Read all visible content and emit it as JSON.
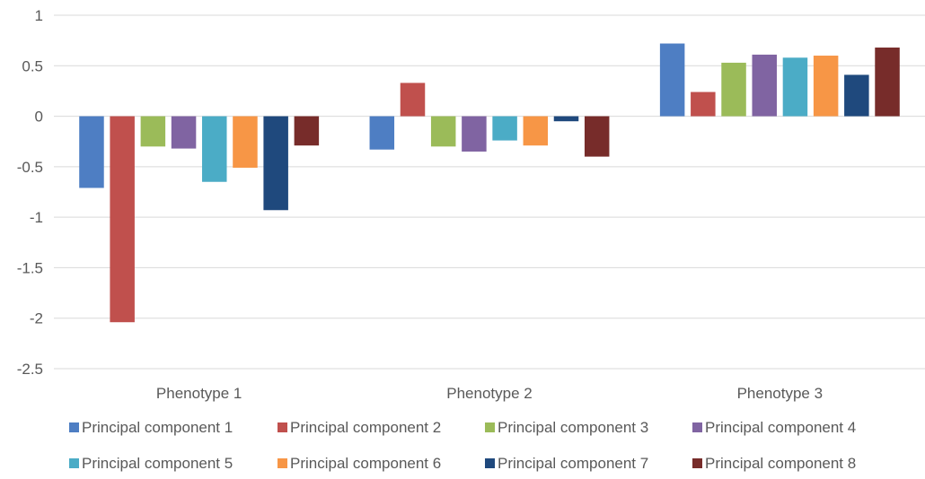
{
  "chart_data": {
    "type": "bar",
    "categories": [
      "Phenotype 1",
      "Phenotype 2",
      "Phenotype 3"
    ],
    "ylim": [
      -2.5,
      1
    ],
    "yticks": [
      1,
      0.5,
      0,
      -0.5,
      -1,
      -1.5,
      -2,
      -2.5
    ],
    "ytick_labels": [
      "1",
      "0.5",
      "0",
      "-0.5",
      "-1",
      "-1.5",
      "-2",
      "-2.5"
    ],
    "grid": true,
    "legend_position": "bottom",
    "title": "",
    "xlabel": "",
    "ylabel": "",
    "series": [
      {
        "name": "Principal component 1",
        "color": "#4e7ec3",
        "values": [
          -0.71,
          -0.33,
          0.72
        ]
      },
      {
        "name": "Principal component 2",
        "color": "#c0504d",
        "values": [
          -2.04,
          0.33,
          0.24
        ]
      },
      {
        "name": "Principal component 3",
        "color": "#9bbb59",
        "values": [
          -0.3,
          -0.3,
          0.53
        ]
      },
      {
        "name": "Principal component 4",
        "color": "#8064a2",
        "values": [
          -0.32,
          -0.35,
          0.61
        ]
      },
      {
        "name": "Principal component 5",
        "color": "#4bacc6",
        "values": [
          -0.65,
          -0.24,
          0.58
        ]
      },
      {
        "name": "Principal component 6",
        "color": "#f79646",
        "values": [
          -0.51,
          -0.29,
          0.6
        ]
      },
      {
        "name": "Principal component 7",
        "color": "#1f497d",
        "values": [
          -0.93,
          -0.05,
          0.41
        ]
      },
      {
        "name": "Principal component 8",
        "color": "#772c2a",
        "values": [
          -0.29,
          -0.4,
          0.68
        ]
      }
    ]
  }
}
